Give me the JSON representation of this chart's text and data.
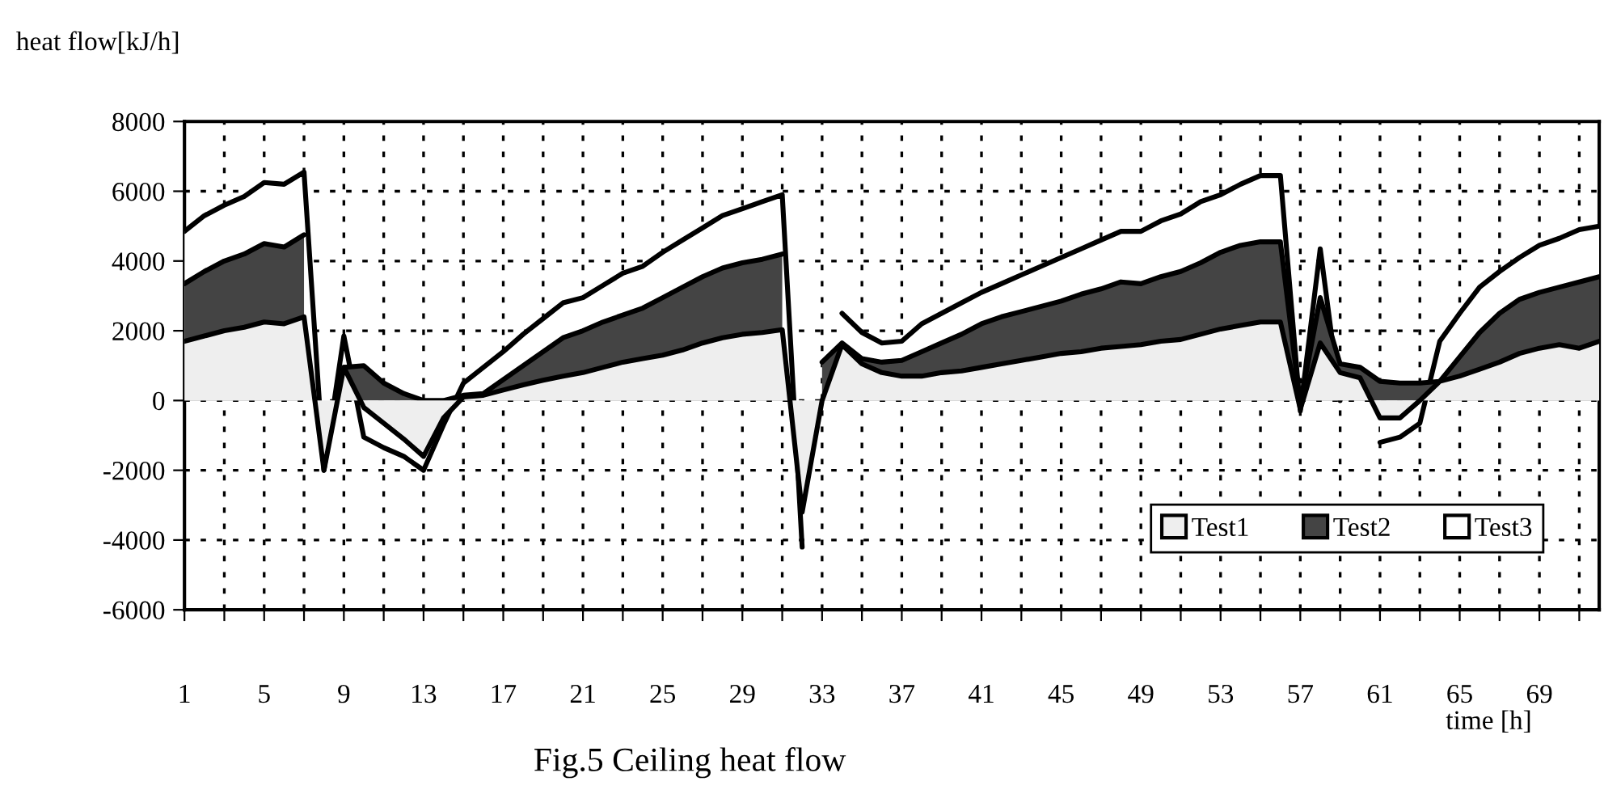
{
  "chart_data": {
    "type": "area",
    "ylabel": "heat flow[kJ/h]",
    "xlabel": "time [h]",
    "annotations": [
      "Fig.5 Ceiling heat flow"
    ],
    "categories": [
      "1",
      null,
      null,
      null,
      "5",
      null,
      null,
      null,
      "9",
      null,
      null,
      null,
      "13",
      null,
      null,
      null,
      "17",
      null,
      null,
      null,
      "21",
      null,
      null,
      null,
      "25",
      null,
      null,
      null,
      "29",
      null,
      null,
      null,
      "33",
      null,
      null,
      null,
      "37",
      null,
      null,
      null,
      "41",
      null,
      null,
      null,
      "45",
      null,
      null,
      null,
      "49",
      null,
      null,
      null,
      "53",
      null,
      null,
      null,
      "57",
      null,
      null,
      null,
      "61",
      null,
      null,
      null,
      "65",
      null,
      null,
      null,
      "69",
      null,
      null,
      null
    ],
    "series": [
      {
        "name": "Test1",
        "color": "#eeeeee",
        "values": [
          1700,
          1850,
          2000,
          2100,
          2250,
          2200,
          2400,
          -2000,
          950,
          -200,
          -650,
          -1100,
          -1600,
          -500,
          100,
          150,
          300,
          450,
          580,
          700,
          800,
          950,
          1100,
          1200,
          1300,
          1450,
          1650,
          1800,
          1900,
          1950,
          2030,
          -3200,
          0,
          1600,
          1050,
          800,
          700,
          700,
          800,
          850,
          950,
          1050,
          1150,
          1250,
          1350,
          1400,
          1500,
          1550,
          1600,
          1700,
          1750,
          1900,
          2050,
          2150,
          2250,
          2250,
          -250,
          1650,
          800,
          650,
          -500,
          -500,
          0,
          550,
          700,
          900,
          1100,
          1350,
          1500,
          1600,
          1500,
          1700
        ]
      },
      {
        "name": "Test2",
        "color": "#444444",
        "values": [
          3350,
          3700,
          4000,
          4200,
          4500,
          4400,
          4750,
          null,
          950,
          1000,
          500,
          200,
          0,
          0,
          150,
          200,
          600,
          1000,
          1400,
          1800,
          2000,
          2250,
          2450,
          2650,
          2950,
          3250,
          3550,
          3800,
          3950,
          4050,
          4200,
          null,
          1100,
          1650,
          1200,
          1100,
          1150,
          1400,
          1650,
          1900,
          2200,
          2400,
          2550,
          2700,
          2850,
          3050,
          3200,
          3400,
          3350,
          3550,
          3700,
          3950,
          4250,
          4450,
          4550,
          4550,
          -100,
          2950,
          1050,
          950,
          550,
          500,
          500,
          550,
          1250,
          1950,
          2500,
          2900,
          3100,
          3250,
          3400,
          3550
        ]
      },
      {
        "name": "Test3",
        "color": "#ffffff",
        "values": [
          4850,
          5300,
          5600,
          5850,
          6250,
          6200,
          6550,
          -2000,
          1850,
          -1050,
          -1350,
          -1600,
          -2000,
          -700,
          500,
          950,
          1400,
          1900,
          2350,
          2800,
          2950,
          3300,
          3650,
          3850,
          4250,
          4600,
          4950,
          5300,
          5500,
          5700,
          5900,
          -4200,
          null,
          2500,
          1950,
          1650,
          1700,
          2200,
          2500,
          2800,
          3100,
          3350,
          3600,
          3850,
          4100,
          4350,
          4600,
          4850,
          4850,
          5150,
          5350,
          5700,
          5900,
          6200,
          6450,
          6450,
          -300,
          4350,
          0,
          null,
          -1200,
          -1050,
          -650,
          1700,
          2500,
          3250,
          3700,
          4100,
          4450,
          4650,
          4900,
          5000
        ]
      }
    ],
    "ylim": [
      -6000,
      8000
    ],
    "yticks": [
      -6000,
      -4000,
      -2000,
      0,
      2000,
      4000,
      6000,
      8000
    ],
    "grid": true,
    "legend": "bottom right"
  }
}
